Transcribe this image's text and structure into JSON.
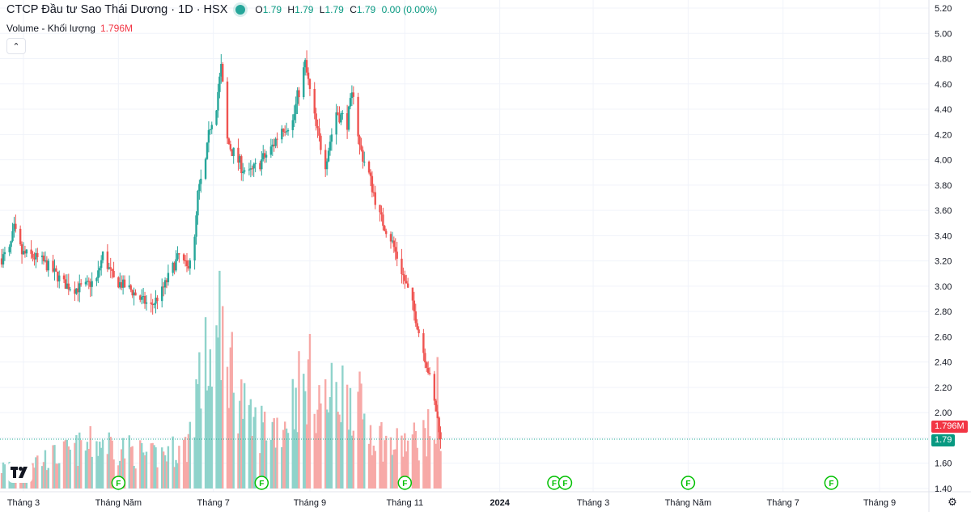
{
  "legend": {
    "title": "CTCP Đầu tư Sao Thái Dương · 1D · HSX",
    "open_key": "O",
    "open": "1.79",
    "high_key": "H",
    "high": "1.79",
    "low_key": "L",
    "low": "1.79",
    "close_key": "C",
    "close": "1.79",
    "change": "0.00 (0.00%)"
  },
  "volume_legend": {
    "label": "Volume - Khối lượng",
    "value": "1.796M"
  },
  "collapse_icon": "chevron-up-icon",
  "price_labels": {
    "volume_tag": "1.796M",
    "last_price_tag": "1.79"
  },
  "colors": {
    "up": "#26a69a",
    "down": "#ef5350",
    "vol_up": "#8fd3cb",
    "vol_down": "#f7a9a7",
    "last_price_line": "#22ab94",
    "volume_tag_bg": "#f23645",
    "price_tag_bg": "#089981",
    "event_marker": "#00c000"
  },
  "chart_data": {
    "type": "candlestick",
    "title": "CTCP Đầu tư Sao Thái Dương · 1D · HSX",
    "y_ticks": [
      "5.20",
      "5.00",
      "4.80",
      "4.60",
      "4.40",
      "4.20",
      "4.00",
      "3.80",
      "3.60",
      "3.40",
      "3.20",
      "3.00",
      "2.80",
      "2.60",
      "2.40",
      "2.20",
      "2.00",
      "1.80",
      "1.60",
      "1.40"
    ],
    "ylim": [
      1.4,
      5.2
    ],
    "x_ticks": [
      {
        "label": "Tháng 3",
        "date": "2023-03-01",
        "bold": false
      },
      {
        "label": "Tháng Năm",
        "date": "2023-05-01",
        "bold": false
      },
      {
        "label": "Tháng 7",
        "date": "2023-07-01",
        "bold": false
      },
      {
        "label": "Tháng 9",
        "date": "2023-09-01",
        "bold": false
      },
      {
        "label": "Tháng 11",
        "date": "2023-11-01",
        "bold": false
      },
      {
        "label": "2024",
        "date": "2024-01-01",
        "bold": true
      },
      {
        "label": "Tháng 3",
        "date": "2024-03-01",
        "bold": false
      },
      {
        "label": "Tháng Năm",
        "date": "2024-05-01",
        "bold": false
      },
      {
        "label": "Tháng 7",
        "date": "2024-07-01",
        "bold": false
      },
      {
        "label": "Tháng 9",
        "date": "2024-09-01",
        "bold": false
      }
    ],
    "grid": true,
    "last_price": 1.79,
    "event_markers": {
      "label": "F",
      "dates": [
        "2023-05-01",
        "2023-08-01",
        "2023-11-01",
        "2024-02-05",
        "2024-02-12",
        "2024-05-01",
        "2024-08-01"
      ]
    },
    "price_path": [
      [
        "2023-02-15",
        3.22
      ],
      [
        "2023-02-20",
        3.28
      ],
      [
        "2023-02-23",
        3.45
      ],
      [
        "2023-02-28",
        3.26
      ],
      [
        "2023-03-06",
        3.24
      ],
      [
        "2023-03-13",
        3.2
      ],
      [
        "2023-03-20",
        3.12
      ],
      [
        "2023-03-27",
        3.02
      ],
      [
        "2023-04-03",
        2.98
      ],
      [
        "2023-04-10",
        3.0
      ],
      [
        "2023-04-17",
        3.05
      ],
      [
        "2023-04-21",
        3.25
      ],
      [
        "2023-04-28",
        3.05
      ],
      [
        "2023-05-08",
        2.98
      ],
      [
        "2023-05-15",
        2.9
      ],
      [
        "2023-05-22",
        2.84
      ],
      [
        "2023-05-29",
        2.96
      ],
      [
        "2023-06-05",
        3.15
      ],
      [
        "2023-06-09",
        3.24
      ],
      [
        "2023-06-14",
        3.14
      ],
      [
        "2023-06-19",
        3.36
      ],
      [
        "2023-06-21",
        3.72
      ],
      [
        "2023-06-26",
        3.98
      ],
      [
        "2023-06-29",
        4.28
      ],
      [
        "2023-07-03",
        4.45
      ],
      [
        "2023-07-06",
        4.72
      ],
      [
        "2023-07-10",
        4.15
      ],
      [
        "2023-07-14",
        4.05
      ],
      [
        "2023-07-19",
        3.95
      ],
      [
        "2023-07-24",
        3.88
      ],
      [
        "2023-07-31",
        3.98
      ],
      [
        "2023-08-07",
        4.08
      ],
      [
        "2023-08-14",
        4.26
      ],
      [
        "2023-08-21",
        4.3
      ],
      [
        "2023-08-25",
        4.55
      ],
      [
        "2023-08-29",
        4.75
      ],
      [
        "2023-09-05",
        4.25
      ],
      [
        "2023-09-11",
        3.98
      ],
      [
        "2023-09-18",
        4.38
      ],
      [
        "2023-09-25",
        4.3
      ],
      [
        "2023-09-29",
        4.55
      ],
      [
        "2023-10-03",
        4.1
      ],
      [
        "2023-10-09",
        3.88
      ],
      [
        "2023-10-16",
        3.55
      ],
      [
        "2023-10-23",
        3.38
      ],
      [
        "2023-10-30",
        3.12
      ],
      [
        "2023-11-06",
        2.85
      ],
      [
        "2023-11-13",
        2.48
      ],
      [
        "2023-11-17",
        2.28
      ],
      [
        "2023-11-22",
        1.95
      ],
      [
        "2023-11-24",
        1.79
      ]
    ],
    "volume_path": [
      [
        "2023-02-15",
        0.2
      ],
      [
        "2023-03-20",
        0.3
      ],
      [
        "2023-04-21",
        0.45
      ],
      [
        "2023-05-22",
        0.3
      ],
      [
        "2023-06-14",
        0.4
      ],
      [
        "2023-06-21",
        1.0
      ],
      [
        "2023-07-06",
        1.5
      ],
      [
        "2023-07-24",
        0.6
      ],
      [
        "2023-08-14",
        0.6
      ],
      [
        "2023-08-29",
        1.1
      ],
      [
        "2023-09-11",
        0.8
      ],
      [
        "2023-09-25",
        1.0
      ],
      [
        "2023-10-09",
        0.6
      ],
      [
        "2023-10-23",
        0.4
      ],
      [
        "2023-11-06",
        0.45
      ],
      [
        "2023-11-24",
        0.6
      ]
    ],
    "volume_peaks": [
      [
        "2023-07-06",
        2.35
      ],
      [
        "2023-08-29",
        2.2
      ],
      [
        "2023-09-25",
        2.2
      ],
      [
        "2023-11-22",
        2.3
      ]
    ]
  }
}
